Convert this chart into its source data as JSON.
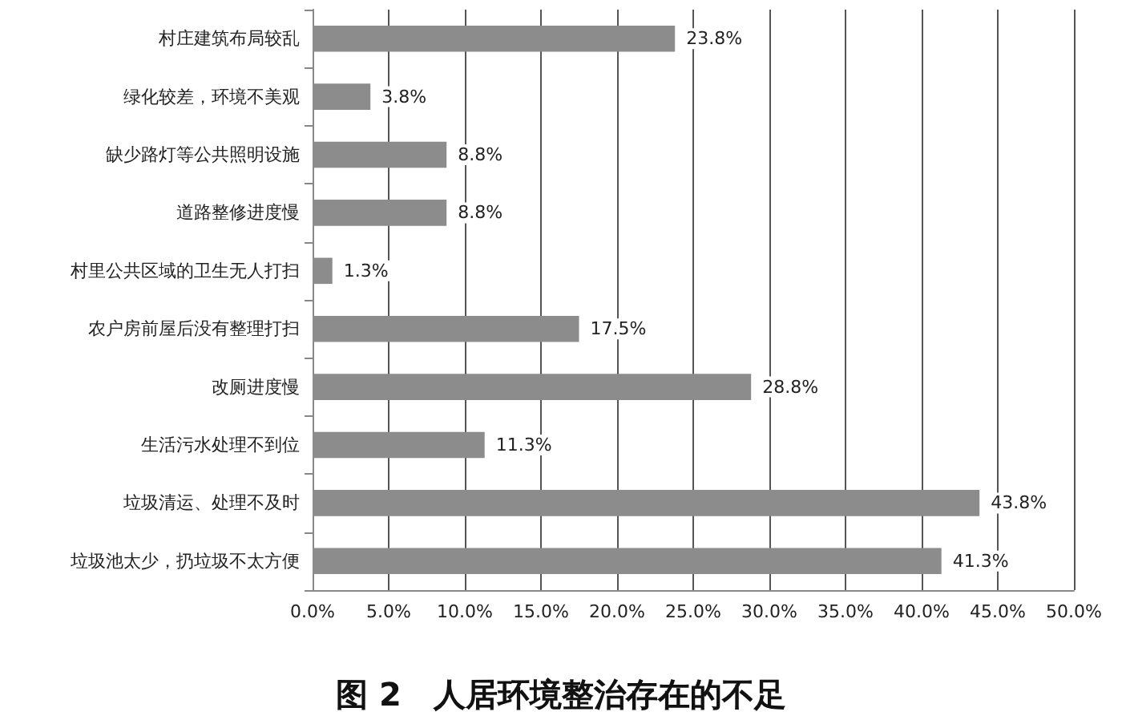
{
  "chart_data": {
    "type": "bar",
    "orientation": "horizontal",
    "title": "图 2　人居环境整治存在的不足",
    "categories": [
      "村庄建筑布局较乱",
      "绿化较差，环境不美观",
      "缺少路灯等公共照明设施",
      "道路整修进度慢",
      "村里公共区域的卫生无人打扫",
      "农户房前屋后没有整理打扫",
      "改厕进度慢",
      "生活污水处理不到位",
      "垃圾清运、处理不及时",
      "垃圾池太少，扔垃圾不太方便"
    ],
    "values": [
      23.8,
      3.8,
      8.8,
      8.8,
      1.3,
      17.5,
      28.8,
      11.3,
      43.8,
      41.3
    ],
    "value_labels": [
      "23.8%",
      "3.8%",
      "8.8%",
      "8.8%",
      "1.3%",
      "17.5%",
      "28.8%",
      "11.3%",
      "43.8%",
      "41.3%"
    ],
    "color": "#8c8c8c",
    "xlim": [
      0,
      50
    ],
    "xticks": [
      {
        "value": 0,
        "label": "0.0%"
      },
      {
        "value": 5,
        "label": "5.0%"
      },
      {
        "value": 10,
        "label": "10.0%"
      },
      {
        "value": 15,
        "label": "15.0%"
      },
      {
        "value": 20,
        "label": "20.0%"
      },
      {
        "value": 25,
        "label": "25.0%"
      },
      {
        "value": 30,
        "label": "30.0%"
      },
      {
        "value": 35,
        "label": "35.0%"
      },
      {
        "value": 40,
        "label": "40.0%"
      },
      {
        "value": 45,
        "label": "45.0%"
      },
      {
        "value": 50,
        "label": "50.0%"
      }
    ],
    "grid": "x"
  }
}
